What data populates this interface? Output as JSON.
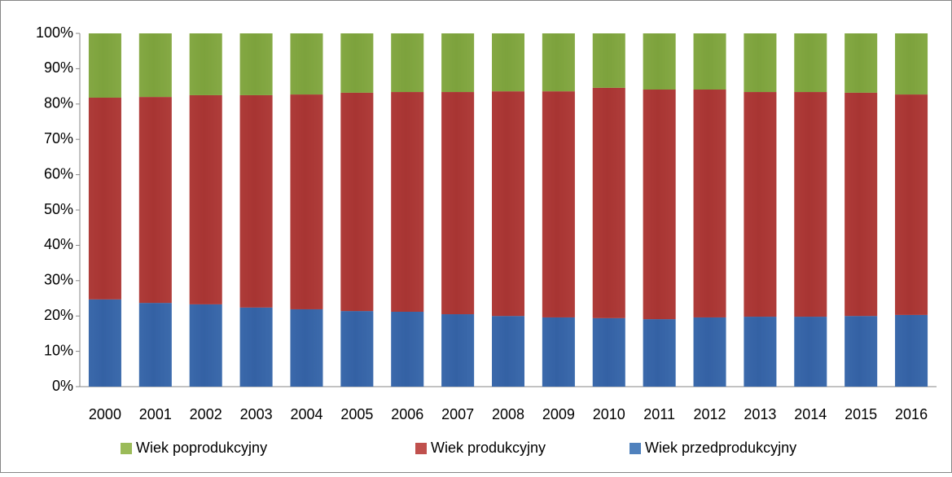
{
  "chart_data": {
    "type": "stacked-bar",
    "categories": [
      "2000",
      "2001",
      "2002",
      "2003",
      "2004",
      "2005",
      "2006",
      "2007",
      "2008",
      "2009",
      "2010",
      "2011",
      "2012",
      "2013",
      "2014",
      "2015",
      "2016"
    ],
    "series": [
      {
        "name": "Wiek przedprodukcyjny",
        "color": "#4f81bd",
        "values": [
          24.7,
          23.7,
          23.3,
          22.4,
          21.9,
          21.4,
          21.2,
          20.5,
          20.0,
          19.6,
          19.4,
          19.1,
          19.6,
          19.8,
          19.8,
          20.0,
          20.3
        ]
      },
      {
        "name": "Wiek produkcyjny",
        "color": "#c0504d",
        "values": [
          57.1,
          58.3,
          59.2,
          60.1,
          60.8,
          61.8,
          62.2,
          62.9,
          63.6,
          64.0,
          65.2,
          65.0,
          64.5,
          63.6,
          63.6,
          63.2,
          62.4
        ]
      },
      {
        "name": "Wiek poprodukcyjny",
        "color": "#9bbb59",
        "values": [
          18.2,
          18.0,
          17.5,
          17.5,
          17.3,
          16.8,
          16.6,
          16.6,
          16.4,
          16.4,
          15.4,
          15.9,
          15.9,
          16.6,
          16.6,
          16.8,
          17.3
        ]
      }
    ],
    "ylim": [
      0,
      100
    ],
    "yticks": [
      {
        "value": 0,
        "label": "0%"
      },
      {
        "value": 10,
        "label": "10%"
      },
      {
        "value": 20,
        "label": "20%"
      },
      {
        "value": 30,
        "label": "30%"
      },
      {
        "value": 40,
        "label": "40%"
      },
      {
        "value": 50,
        "label": "50%"
      },
      {
        "value": 60,
        "label": "60%"
      },
      {
        "value": 70,
        "label": "70%"
      },
      {
        "value": 80,
        "label": "80%"
      },
      {
        "value": 90,
        "label": "90%"
      },
      {
        "value": 100,
        "label": "100%"
      }
    ],
    "grid": false,
    "legend": "bottom"
  }
}
